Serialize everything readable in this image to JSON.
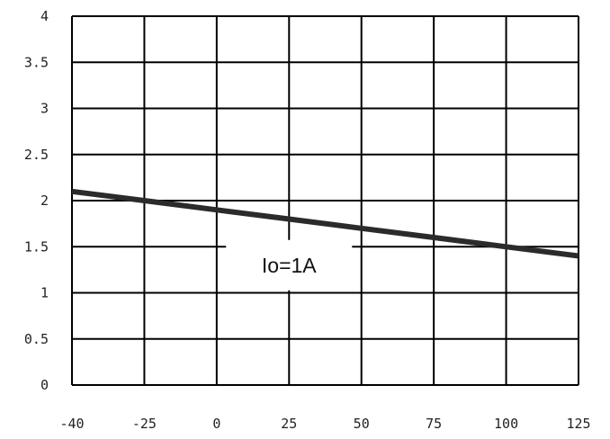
{
  "chart_data": {
    "type": "line",
    "title": "",
    "xlabel": "",
    "ylabel": "",
    "xlim": [
      -40,
      125
    ],
    "ylim": [
      0,
      4
    ],
    "grid": true,
    "x_ticks": [
      "-40",
      "-25",
      "0",
      "25",
      "50",
      "75",
      "100",
      "125"
    ],
    "y_ticks": [
      "0",
      "0.5",
      "1",
      "1.5",
      "2",
      "2.5",
      "3",
      "3.5",
      "4"
    ],
    "series": [
      {
        "x": [
          -40,
          -25,
          0,
          25,
          50,
          75,
          100,
          125
        ],
        "y": [
          2.1,
          2.0,
          1.9,
          1.8,
          1.7,
          1.6,
          1.5,
          1.4
        ],
        "color": "#2b2b2b"
      }
    ],
    "annotations": [
      {
        "text": "Io=1A",
        "x": 25,
        "y": 1.3
      }
    ]
  }
}
